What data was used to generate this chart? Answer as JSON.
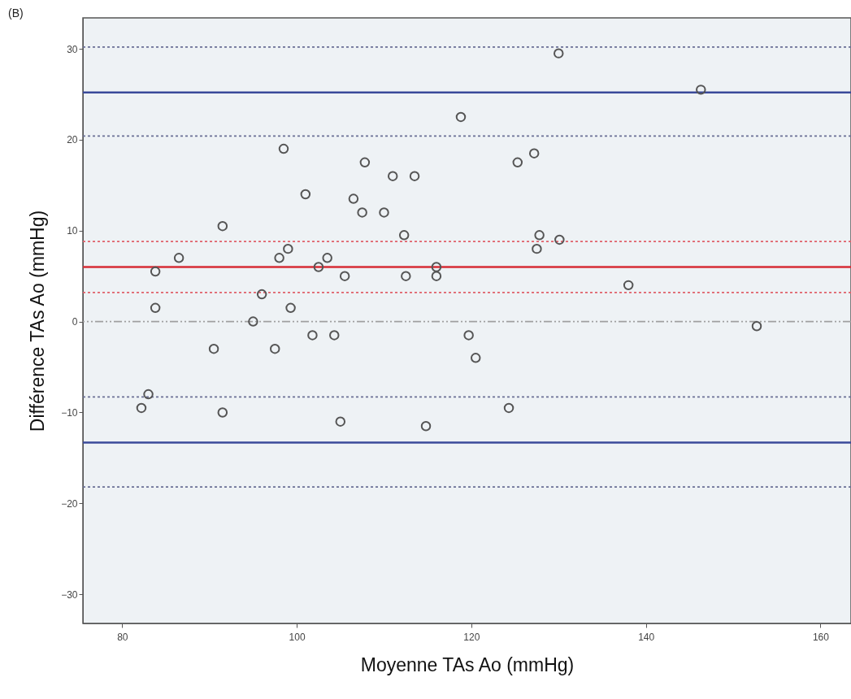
{
  "chart_data": {
    "type": "scatter",
    "xlabel": "Moyenne TAs Ao (mmHg)",
    "ylabel": "Différence TAs Ao (mmHg)",
    "annotations": [
      "(B)"
    ],
    "xlim": [
      75.5,
      163.5
    ],
    "xticks": [
      80,
      100,
      120,
      140,
      160
    ],
    "ylim": [
      -33.2,
      33.4
    ],
    "yticks": [
      -30,
      -20,
      -10,
      0,
      10,
      20,
      30
    ],
    "grid": false,
    "marker": "circle",
    "series": [
      {
        "color": "#555555",
        "x": [
          82.2,
          83,
          83.8,
          83.8,
          86.5,
          90.5,
          91.5,
          91.5,
          95,
          96,
          97.5,
          98,
          98.5,
          99,
          99.3,
          101,
          101.8,
          102.5,
          103.5,
          104.3,
          105,
          105.5,
          106.5,
          107.5,
          107.8,
          110,
          111,
          112.3,
          112.5,
          113.5,
          114.8,
          116,
          116,
          118.8,
          119.7,
          120.5,
          124.3,
          125.3,
          127.2,
          127.5,
          127.8,
          130,
          130.1,
          138,
          146.3,
          152.7
        ],
        "values": [
          -9.5,
          -8,
          5.5,
          1.5,
          7,
          -3,
          10.5,
          -10,
          0,
          3,
          -3,
          7,
          19,
          8,
          1.5,
          14,
          -1.5,
          6,
          7,
          -1.5,
          -11,
          5,
          13.5,
          12,
          17.5,
          12,
          16,
          9.5,
          5,
          16,
          -11.5,
          6,
          5,
          22.5,
          -1.5,
          -4,
          -9.5,
          17.5,
          18.5,
          8,
          9.5,
          29.5,
          9,
          4,
          25.5,
          -0.5
        ]
      }
    ],
    "ref_lines": [
      {
        "axis": "y",
        "value": 30.2,
        "color": "#6a6f95",
        "line_style": "dotted"
      },
      {
        "axis": "y",
        "value": 25.2,
        "color": "#3a4a9a",
        "line_style": "solid"
      },
      {
        "axis": "y",
        "value": 20.4,
        "color": "#6a6f95",
        "line_style": "dotted"
      },
      {
        "axis": "y",
        "value": 8.8,
        "color": "#e0606a",
        "line_style": "dotted"
      },
      {
        "axis": "y",
        "value": 6,
        "color": "#d62c35",
        "line_style": "solid"
      },
      {
        "axis": "y",
        "value": 3.2,
        "color": "#e0606a",
        "line_style": "dotted"
      },
      {
        "axis": "y",
        "value": 0,
        "color": "#a0a0a0",
        "line_style": "dashed"
      },
      {
        "axis": "y",
        "value": -8.3,
        "color": "#6a6f95",
        "line_style": "dotted"
      },
      {
        "axis": "y",
        "value": -13.3,
        "color": "#3a4a9a",
        "line_style": "solid"
      },
      {
        "axis": "y",
        "value": -18.2,
        "color": "#6a6f95",
        "line_style": "dotted"
      }
    ]
  }
}
